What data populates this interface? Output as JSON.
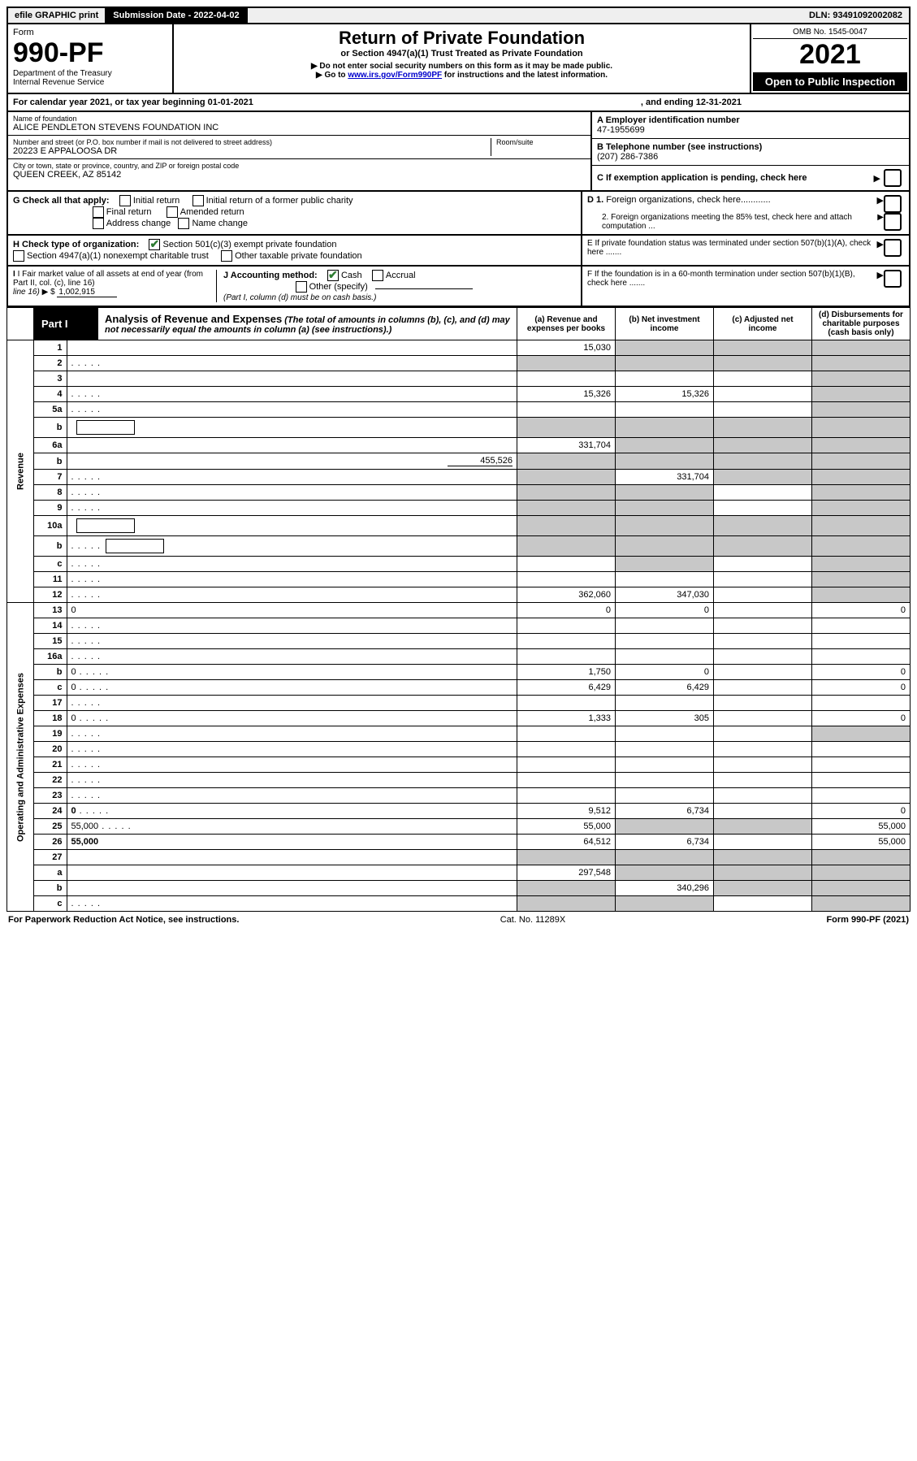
{
  "top": {
    "efile": "efile GRAPHIC print",
    "sub_label": "Submission Date - 2022-04-02",
    "dln": "DLN: 93491092002082"
  },
  "header": {
    "form_word": "Form",
    "form_num": "990-PF",
    "dept1": "Department of the Treasury",
    "dept2": "Internal Revenue Service",
    "title": "Return of Private Foundation",
    "sub": "or Section 4947(a)(1) Trust Treated as Private Foundation",
    "note1": "▶ Do not enter social security numbers on this form as it may be made public.",
    "note2_pre": "▶ Go to ",
    "note2_link": "www.irs.gov/Form990PF",
    "note2_post": " for instructions and the latest information.",
    "omb": "OMB No. 1545-0047",
    "year": "2021",
    "open": "Open to Public Inspection"
  },
  "calyear": {
    "pre": "For calendar year 2021, or tax year beginning 01-01-2021",
    "mid": ", and ending 12-31-2021"
  },
  "entity": {
    "name_label": "Name of foundation",
    "name": "ALICE PENDLETON STEVENS FOUNDATION INC",
    "addr_label": "Number and street (or P.O. box number if mail is not delivered to street address)",
    "addr": "20223 E APPALOOSA DR",
    "room_label": "Room/suite",
    "city_label": "City or town, state or province, country, and ZIP or foreign postal code",
    "city": "QUEEN CREEK, AZ  85142",
    "a_label": "A Employer identification number",
    "a_val": "47-1955699",
    "b_label": "B Telephone number (see instructions)",
    "b_val": "(207) 286-7386",
    "c_label": "C If exemption application is pending, check here"
  },
  "checks": {
    "g_label": "G Check all that apply:",
    "g_initial": "Initial return",
    "g_initial_former": "Initial return of a former public charity",
    "g_final": "Final return",
    "g_amended": "Amended return",
    "g_addr": "Address change",
    "g_name": "Name change",
    "h_label": "H Check type of organization:",
    "h_501c3": "Section 501(c)(3) exempt private foundation",
    "h_4947": "Section 4947(a)(1) nonexempt charitable trust",
    "h_other_tax": "Other taxable private foundation",
    "i_label": "I Fair market value of all assets at end of year (from Part II, col. (c), line 16)",
    "i_arrow": "▶ $",
    "i_val": "1,002,915",
    "j_label": "J Accounting method:",
    "j_cash": "Cash",
    "j_accrual": "Accrual",
    "j_other": "Other (specify)",
    "j_note": "(Part I, column (d) must be on cash basis.)",
    "d1": "D 1. Foreign organizations, check here............",
    "d2": "2. Foreign organizations meeting the 85% test, check here and attach computation ...",
    "e": "E  If private foundation status was terminated under section 507(b)(1)(A), check here .......",
    "f": "F  If the foundation is in a 60-month termination under section 507(b)(1)(B), check here ......."
  },
  "part1": {
    "label": "Part I",
    "title": "Analysis of Revenue and Expenses",
    "note": "(The total of amounts in columns (b), (c), and (d) may not necessarily equal the amounts in column (a) (see instructions).)",
    "col_a": "(a)   Revenue and expenses per books",
    "col_b": "(b)   Net investment income",
    "col_c": "(c)   Adjusted net income",
    "col_d": "(d)   Disbursements for charitable purposes (cash basis only)"
  },
  "sections": {
    "revenue": "Revenue",
    "expenses": "Operating and Administrative Expenses"
  },
  "rows": {
    "r1": {
      "n": "1",
      "d": "",
      "a": "15,030",
      "b": "",
      "c": "",
      "shade_b": true,
      "shade_c": true,
      "shade_d": true
    },
    "r2": {
      "n": "2",
      "d": "",
      "dots": true,
      "a": "",
      "b": "",
      "c": "",
      "shade_a": true,
      "shade_b": true,
      "shade_c": true,
      "shade_d": true
    },
    "r3": {
      "n": "3",
      "d": "",
      "a": "",
      "b": "",
      "c": "",
      "shade_d": true
    },
    "r4": {
      "n": "4",
      "d": "",
      "dots": true,
      "a": "15,326",
      "b": "15,326",
      "c": "",
      "shade_d": true
    },
    "r5a": {
      "n": "5a",
      "d": "",
      "dots": true,
      "a": "",
      "b": "",
      "c": "",
      "shade_d": true
    },
    "r5b": {
      "n": "b",
      "d": "",
      "box": true,
      "a": "",
      "b": "",
      "c": "",
      "shade_a": true,
      "shade_b": true,
      "shade_c": true,
      "shade_d": true
    },
    "r6a": {
      "n": "6a",
      "d": "",
      "a": "331,704",
      "b": "",
      "c": "",
      "shade_b": true,
      "shade_c": true,
      "shade_d": true
    },
    "r6b": {
      "n": "b",
      "d": "",
      "underline_val": "455,526",
      "a": "",
      "b": "",
      "c": "",
      "shade_a": true,
      "shade_b": true,
      "shade_c": true,
      "shade_d": true
    },
    "r7": {
      "n": "7",
      "d": "",
      "dots": true,
      "a": "",
      "b": "331,704",
      "c": "",
      "shade_a": true,
      "shade_c": true,
      "shade_d": true
    },
    "r8": {
      "n": "8",
      "d": "",
      "dots": true,
      "a": "",
      "b": "",
      "c": "",
      "shade_a": true,
      "shade_b": true,
      "shade_d": true
    },
    "r9": {
      "n": "9",
      "d": "",
      "dots": true,
      "a": "",
      "b": "",
      "c": "",
      "shade_a": true,
      "shade_b": true,
      "shade_d": true
    },
    "r10a": {
      "n": "10a",
      "d": "",
      "box": true,
      "a": "",
      "b": "",
      "c": "",
      "shade_a": true,
      "shade_b": true,
      "shade_c": true,
      "shade_d": true
    },
    "r10b": {
      "n": "b",
      "d": "",
      "dots": true,
      "box": true,
      "a": "",
      "b": "",
      "c": "",
      "shade_a": true,
      "shade_b": true,
      "shade_c": true,
      "shade_d": true
    },
    "r10c": {
      "n": "c",
      "d": "",
      "dots": true,
      "a": "",
      "b": "",
      "c": "",
      "shade_b": true,
      "shade_d": true
    },
    "r11": {
      "n": "11",
      "d": "",
      "dots": true,
      "a": "",
      "b": "",
      "c": "",
      "shade_d": true
    },
    "r12": {
      "n": "12",
      "d": "",
      "dots": true,
      "bold": true,
      "a": "362,060",
      "b": "347,030",
      "c": "",
      "shade_d": true
    },
    "r13": {
      "n": "13",
      "d": "0",
      "a": "0",
      "b": "0",
      "c": ""
    },
    "r14": {
      "n": "14",
      "d": "",
      "dots": true,
      "a": "",
      "b": "",
      "c": ""
    },
    "r15": {
      "n": "15",
      "d": "",
      "dots": true,
      "a": "",
      "b": "",
      "c": ""
    },
    "r16a": {
      "n": "16a",
      "d": "",
      "dots": true,
      "a": "",
      "b": "",
      "c": ""
    },
    "r16b": {
      "n": "b",
      "d": "0",
      "dots": true,
      "a": "1,750",
      "b": "0",
      "c": ""
    },
    "r16c": {
      "n": "c",
      "d": "0",
      "dots": true,
      "a": "6,429",
      "b": "6,429",
      "c": ""
    },
    "r17": {
      "n": "17",
      "d": "",
      "dots": true,
      "a": "",
      "b": "",
      "c": ""
    },
    "r18": {
      "n": "18",
      "d": "0",
      "dots": true,
      "a": "1,333",
      "b": "305",
      "c": ""
    },
    "r19": {
      "n": "19",
      "d": "",
      "dots": true,
      "a": "",
      "b": "",
      "c": "",
      "shade_d": true
    },
    "r20": {
      "n": "20",
      "d": "",
      "dots": true,
      "a": "",
      "b": "",
      "c": ""
    },
    "r21": {
      "n": "21",
      "d": "",
      "dots": true,
      "a": "",
      "b": "",
      "c": ""
    },
    "r22": {
      "n": "22",
      "d": "",
      "dots": true,
      "a": "",
      "b": "",
      "c": ""
    },
    "r23": {
      "n": "23",
      "d": "",
      "dots": true,
      "a": "",
      "b": "",
      "c": ""
    },
    "r24": {
      "n": "24",
      "d": "0",
      "dots": true,
      "bold": true,
      "a": "9,512",
      "b": "6,734",
      "c": ""
    },
    "r25": {
      "n": "25",
      "d": "55,000",
      "dots": true,
      "a": "55,000",
      "b": "",
      "c": "",
      "shade_b": true,
      "shade_c": true
    },
    "r26": {
      "n": "26",
      "d": "55,000",
      "bold": true,
      "a": "64,512",
      "b": "6,734",
      "c": ""
    },
    "r27": {
      "n": "27",
      "d": "",
      "a": "",
      "b": "",
      "c": "",
      "shade_a": true,
      "shade_b": true,
      "shade_c": true,
      "shade_d": true
    },
    "r27a": {
      "n": "a",
      "d": "",
      "bold": true,
      "a": "297,548",
      "b": "",
      "c": "",
      "shade_b": true,
      "shade_c": true,
      "shade_d": true
    },
    "r27b": {
      "n": "b",
      "d": "",
      "bold": true,
      "a": "",
      "b": "340,296",
      "c": "",
      "shade_a": true,
      "shade_c": true,
      "shade_d": true
    },
    "r27c": {
      "n": "c",
      "d": "",
      "dots": true,
      "bold": true,
      "a": "",
      "b": "",
      "c": "",
      "shade_a": true,
      "shade_b": true,
      "shade_d": true
    }
  },
  "footer": {
    "left": "For Paperwork Reduction Act Notice, see instructions.",
    "mid": "Cat. No. 11289X",
    "right": "Form 990-PF (2021)"
  }
}
